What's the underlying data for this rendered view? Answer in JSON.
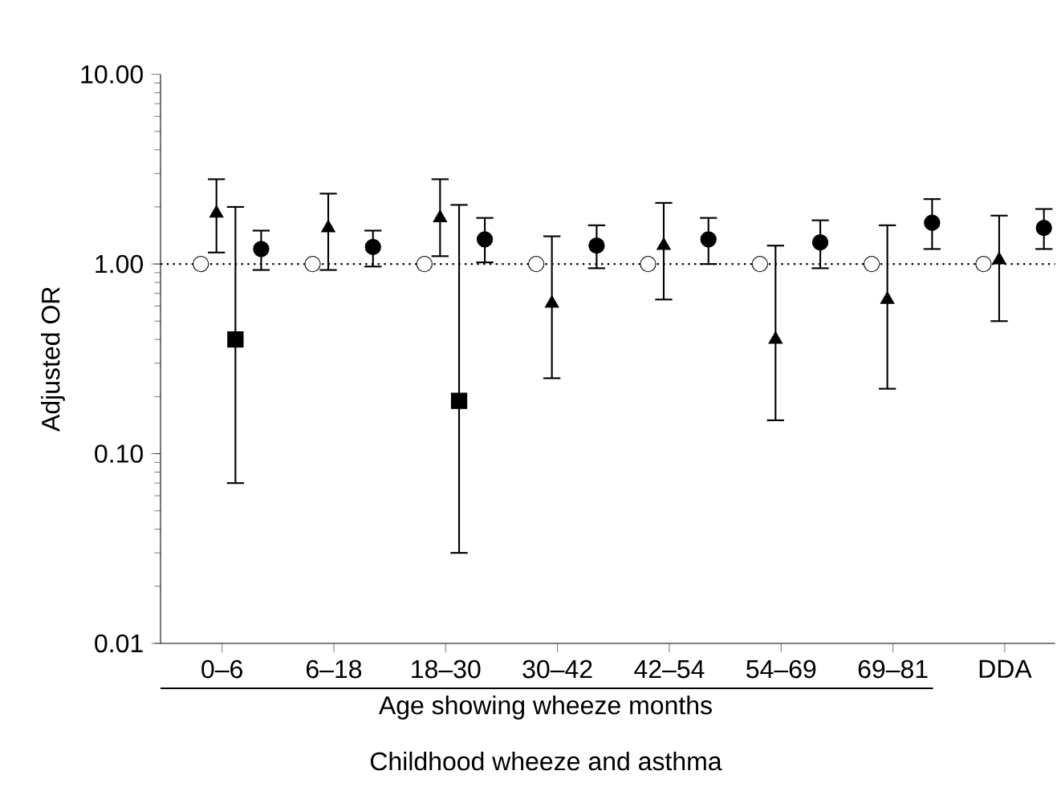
{
  "chart_data": {
    "type": "scatter",
    "ylabel": "Adjusted OR",
    "xlabel": "Childhood wheeze and asthma",
    "annotations": [
      "Age showing wheeze months"
    ],
    "categories": [
      "0–6",
      "6–18",
      "18–30",
      "30–42",
      "42–54",
      "54–69",
      "69–81",
      "DDA"
    ],
    "log": "y",
    "ylim": [
      0.01,
      10
    ],
    "yticks": [
      {
        "value": 0.01,
        "label": "0.01"
      },
      {
        "value": 0.1,
        "label": "0.10"
      },
      {
        "value": 1,
        "label": "1.00"
      },
      {
        "value": 10,
        "label": "10.00"
      }
    ],
    "ref_lines": [
      {
        "axis": "y",
        "value": 1,
        "line_style": "dotted",
        "color": "#000000"
      }
    ],
    "series": [
      {
        "color": "#ffffff",
        "marker": "circle",
        "values": [
          1,
          1,
          1,
          1,
          1,
          1,
          1,
          1
        ]
      },
      {
        "color": "#000000",
        "marker": "triangle",
        "values": [
          1.85,
          1.55,
          1.75,
          0.62,
          1.25,
          0.4,
          0.65,
          1.05
        ],
        "errors": [
          [
            1.15,
            2.8
          ],
          [
            0.93,
            2.35
          ],
          [
            1.1,
            2.8
          ],
          [
            0.25,
            1.4
          ],
          [
            0.65,
            2.1
          ],
          [
            0.15,
            1.25
          ],
          [
            0.22,
            1.6
          ],
          [
            0.5,
            1.8
          ]
        ]
      },
      {
        "color": "#000000",
        "marker": "square",
        "values": [
          0.4,
          null,
          0.19,
          null,
          null,
          null,
          null,
          null
        ],
        "errors": [
          [
            0.07,
            2.0
          ],
          null,
          [
            0.03,
            2.05
          ],
          null,
          null,
          null,
          null,
          null
        ]
      },
      {
        "color": "#000000",
        "marker": "circle",
        "values": [
          1.2,
          1.23,
          1.35,
          1.25,
          1.35,
          1.3,
          1.65,
          1.55
        ],
        "errors": [
          [
            0.93,
            1.5
          ],
          [
            0.97,
            1.5
          ],
          [
            1.02,
            1.75
          ],
          [
            0.95,
            1.6
          ],
          [
            1.0,
            1.75
          ],
          [
            0.95,
            1.7
          ],
          [
            1.2,
            2.2
          ],
          [
            1.2,
            1.95
          ]
        ]
      }
    ]
  }
}
